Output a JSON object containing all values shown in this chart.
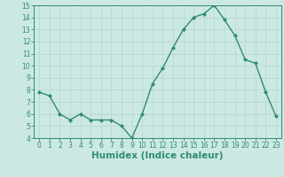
{
  "x": [
    0,
    1,
    2,
    3,
    4,
    5,
    6,
    7,
    8,
    9,
    10,
    11,
    12,
    13,
    14,
    15,
    16,
    17,
    18,
    19,
    20,
    21,
    22,
    23
  ],
  "y": [
    7.8,
    7.5,
    6.0,
    5.5,
    6.0,
    5.5,
    5.5,
    5.5,
    5.0,
    4.0,
    6.0,
    8.5,
    9.8,
    11.5,
    13.0,
    14.0,
    14.3,
    15.0,
    13.8,
    12.5,
    10.5,
    10.2,
    7.8,
    5.8
  ],
  "line_color": "#2e8b74",
  "marker": "D",
  "marker_size": 2,
  "bg_color": "#cce8e4",
  "grid_color": "#b8d8d4",
  "xlabel": "Humidex (Indice chaleur)",
  "ylim": [
    4,
    15
  ],
  "xlim": [
    -0.5,
    23.5
  ],
  "yticks": [
    4,
    5,
    6,
    7,
    8,
    9,
    10,
    11,
    12,
    13,
    14,
    15
  ],
  "xticks": [
    0,
    1,
    2,
    3,
    4,
    5,
    6,
    7,
    8,
    9,
    10,
    11,
    12,
    13,
    14,
    15,
    16,
    17,
    18,
    19,
    20,
    21,
    22,
    23
  ],
  "tick_label_fontsize": 5.5,
  "xlabel_fontsize": 7.5,
  "line_width": 1.0
}
